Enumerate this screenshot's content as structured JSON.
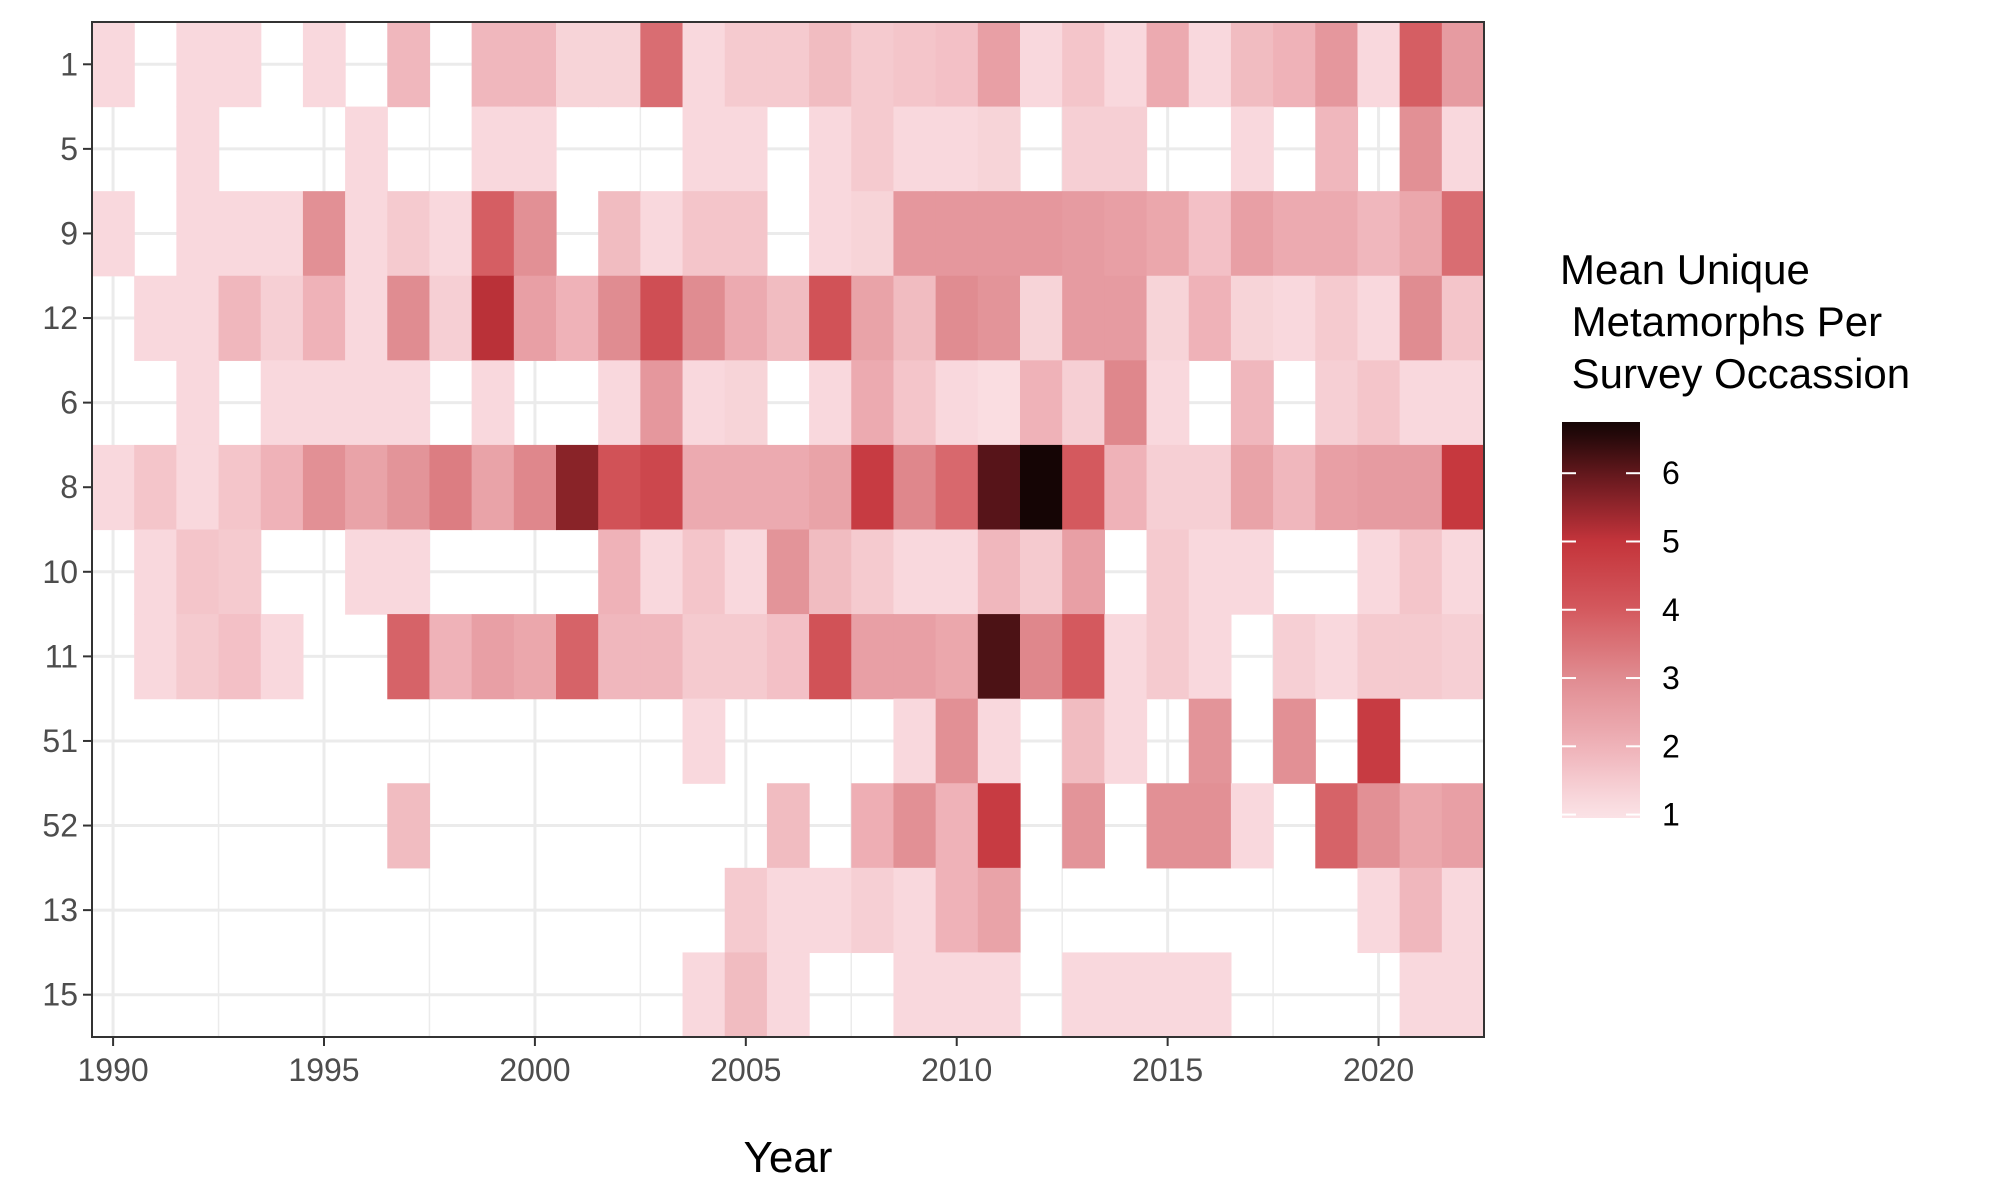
{
  "chart_data": {
    "type": "heatmap",
    "xlabel": "Year",
    "ylabel": "",
    "x_ticks": [
      1990,
      1995,
      2000,
      2005,
      2010,
      2015,
      2020
    ],
    "xlim": [
      1989.5,
      2022.5
    ],
    "y_categories": [
      "1",
      "5",
      "9",
      "12",
      "6",
      "8",
      "10",
      "11",
      "51",
      "52",
      "13",
      "15"
    ],
    "legend": {
      "title_lines": [
        "Mean Unique",
        " Metamorphs Per",
        " Survey Occassion"
      ],
      "ticks": [
        1,
        2,
        3,
        4,
        5,
        6
      ],
      "range": [
        0.95,
        6.75
      ],
      "placement": "right"
    },
    "color_scale": {
      "stops": [
        {
          "value": 1,
          "color": "#fbe2e6"
        },
        {
          "value": 2,
          "color": "#efb2b8"
        },
        {
          "value": 3,
          "color": "#e08c91"
        },
        {
          "value": 4,
          "color": "#d4595e"
        },
        {
          "value": 5,
          "color": "#c4343b"
        },
        {
          "value": 6,
          "color": "#62171c"
        },
        {
          "value": 6.7,
          "color": "#150505"
        }
      ]
    },
    "grid": true,
    "rows": {
      "1": {
        "1990": 1.2,
        "1992": 1.2,
        "1993": 1.2,
        "1995": 1.2,
        "1997": 1.9,
        "1999": 1.9,
        "2000": 1.9,
        "2001": 1.3,
        "2002": 1.3,
        "2003": 3.6,
        "2004": 1.2,
        "2005": 1.5,
        "2006": 1.5,
        "2007": 1.8,
        "2008": 1.5,
        "2009": 1.6,
        "2010": 1.7,
        "2011": 2.5,
        "2012": 1.2,
        "2013": 1.6,
        "2014": 1.2,
        "2015": 2.2,
        "2016": 1.2,
        "2017": 1.8,
        "2018": 2.0,
        "2019": 2.7,
        "2020": 1.2,
        "2021": 3.9,
        "2022": 2.6
      },
      "5": {
        "1992": 1.2,
        "1996": 1.2,
        "1999": 1.2,
        "2000": 1.2,
        "2004": 1.2,
        "2005": 1.2,
        "2007": 1.2,
        "2008": 1.5,
        "2009": 1.2,
        "2010": 1.2,
        "2011": 1.3,
        "2013": 1.4,
        "2014": 1.4,
        "2017": 1.2,
        "2019": 1.9,
        "2021": 2.9,
        "2022": 1.2
      },
      "9": {
        "1990": 1.2,
        "1992": 1.2,
        "1993": 1.2,
        "1994": 1.2,
        "1995": 2.9,
        "1996": 1.2,
        "1997": 1.5,
        "1998": 1.2,
        "1999": 3.9,
        "2000": 2.9,
        "2002": 1.8,
        "2003": 1.2,
        "2004": 1.6,
        "2005": 1.6,
        "2007": 1.2,
        "2008": 1.3,
        "2009": 2.7,
        "2010": 2.7,
        "2011": 2.7,
        "2012": 2.7,
        "2013": 2.6,
        "2014": 2.5,
        "2015": 2.3,
        "2016": 1.7,
        "2017": 2.5,
        "2018": 2.2,
        "2019": 2.2,
        "2020": 1.9,
        "2021": 2.3,
        "2022": 3.6
      },
      "12": {
        "1991": 1.2,
        "1992": 1.2,
        "1993": 1.9,
        "1994": 1.4,
        "1995": 2.0,
        "1996": 1.2,
        "1997": 3.0,
        "1998": 1.4,
        "1999": 5.1,
        "2000": 2.5,
        "2001": 2.0,
        "2002": 3.0,
        "2003": 4.3,
        "2004": 3.0,
        "2005": 2.2,
        "2006": 1.8,
        "2007": 4.2,
        "2008": 2.4,
        "2009": 1.8,
        "2010": 3.0,
        "2011": 2.8,
        "2012": 1.3,
        "2013": 2.6,
        "2014": 2.6,
        "2015": 1.3,
        "2016": 2.0,
        "2017": 1.3,
        "2018": 1.2,
        "2019": 1.5,
        "2020": 1.2,
        "2021": 3.0,
        "2022": 1.6
      },
      "6": {
        "1992": 1.2,
        "1994": 1.2,
        "1995": 1.2,
        "1996": 1.2,
        "1997": 1.2,
        "1999": 1.2,
        "2002": 1.2,
        "2003": 2.7,
        "2004": 1.2,
        "2005": 1.3,
        "2007": 1.2,
        "2008": 2.2,
        "2009": 1.6,
        "2010": 1.2,
        "2011": 1.1,
        "2012": 2.0,
        "2013": 1.4,
        "2014": 3.1,
        "2015": 1.2,
        "2017": 1.9,
        "2019": 1.4,
        "2020": 1.6,
        "2021": 1.2,
        "2022": 1.2
      },
      "8": {
        "1990": 1.2,
        "1991": 1.6,
        "1992": 1.2,
        "1993": 1.6,
        "1994": 2.0,
        "1995": 2.9,
        "1996": 2.4,
        "1997": 2.8,
        "1998": 3.3,
        "1999": 2.4,
        "2000": 3.1,
        "2001": 5.6,
        "2002": 4.2,
        "2003": 4.5,
        "2004": 2.2,
        "2005": 2.2,
        "2006": 2.2,
        "2007": 2.4,
        "2008": 4.8,
        "2009": 3.1,
        "2010": 3.7,
        "2011": 6.1,
        "2012": 6.7,
        "2013": 4.0,
        "2014": 2.0,
        "2015": 1.4,
        "2016": 1.4,
        "2017": 2.4,
        "2018": 1.9,
        "2019": 2.5,
        "2020": 2.6,
        "2021": 2.6,
        "2022": 4.9
      },
      "10": {
        "1991": 1.2,
        "1992": 1.6,
        "1993": 1.5,
        "1996": 1.2,
        "1997": 1.2,
        "2002": 2.0,
        "2003": 1.2,
        "2004": 1.6,
        "2005": 1.2,
        "2006": 2.8,
        "2007": 1.8,
        "2008": 1.5,
        "2009": 1.2,
        "2010": 1.2,
        "2011": 1.9,
        "2012": 1.5,
        "2013": 2.5,
        "2015": 1.5,
        "2016": 1.2,
        "2017": 1.2,
        "2020": 1.2,
        "2021": 1.6,
        "2022": 1.2
      },
      "11": {
        "1991": 1.2,
        "1992": 1.5,
        "1993": 1.7,
        "1994": 1.2,
        "1997": 3.8,
        "1998": 2.0,
        "1999": 2.5,
        "2000": 2.3,
        "2001": 3.8,
        "2002": 1.9,
        "2003": 1.9,
        "2004": 1.5,
        "2005": 1.5,
        "2006": 1.7,
        "2007": 4.2,
        "2008": 2.5,
        "2009": 2.5,
        "2010": 2.3,
        "2011": 6.2,
        "2012": 3.1,
        "2013": 4.0,
        "2014": 1.2,
        "2015": 1.5,
        "2016": 1.2,
        "2018": 1.4,
        "2019": 1.2,
        "2020": 1.5,
        "2021": 1.5,
        "2022": 1.4
      },
      "51": {
        "2004": 1.2,
        "2009": 1.2,
        "2010": 2.9,
        "2011": 1.2,
        "2013": 1.8,
        "2014": 1.2,
        "2016": 2.8,
        "2018": 2.9,
        "2020": 4.8
      },
      "52": {
        "1997": 1.8,
        "2006": 1.8,
        "2008": 2.1,
        "2009": 2.9,
        "2010": 2.0,
        "2011": 4.8,
        "2013": 2.8,
        "2015": 2.9,
        "2016": 2.9,
        "2017": 1.2,
        "2019": 3.8,
        "2020": 2.9,
        "2021": 2.3,
        "2022": 2.5
      },
      "13": {
        "2005": 1.5,
        "2006": 1.2,
        "2007": 1.2,
        "2008": 1.4,
        "2009": 1.2,
        "2010": 2.0,
        "2011": 2.4,
        "2020": 1.2,
        "2021": 1.9,
        "2022": 1.2
      },
      "15": {
        "2004": 1.2,
        "2005": 1.8,
        "2006": 1.2,
        "2009": 1.2,
        "2010": 1.2,
        "2011": 1.2,
        "2013": 1.2,
        "2014": 1.2,
        "2015": 1.2,
        "2016": 1.2,
        "2021": 1.2,
        "2022": 1.2
      }
    }
  }
}
